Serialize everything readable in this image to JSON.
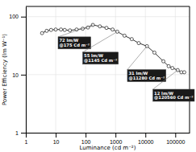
{
  "chart_data": {
    "type": "line",
    "x": [
      3.5,
      5,
      7,
      10,
      15,
      20,
      30,
      50,
      80,
      120,
      175,
      300,
      500,
      800,
      1145,
      2000,
      3500,
      6000,
      11280,
      20000,
      40000,
      60000,
      80000,
      120560,
      160000,
      200000
    ],
    "values": [
      52,
      57,
      59,
      60,
      60,
      59,
      58,
      60,
      62,
      65,
      72,
      68,
      64,
      60,
      55,
      47,
      41,
      35,
      31,
      24,
      17,
      14,
      13,
      12,
      11,
      11
    ],
    "xlabel": "Luminance (cd m⁻²)",
    "ylabel": "Power Efficiency (lm W⁻¹)",
    "xlim": [
      1,
      300000
    ],
    "ylim": [
      1,
      150
    ],
    "xticks": [
      1,
      10,
      100,
      1000,
      10000,
      100000
    ],
    "yticks": [
      1,
      10,
      100
    ],
    "log": true,
    "grid": true,
    "color": "#333333",
    "marker": "circle",
    "annotations": [
      {
        "label": "72 lm/W\n@175 Cd m⁻²",
        "x": 175,
        "y": 72,
        "text_x": 12,
        "text_y": 44
      },
      {
        "label": "55 lm/W\n@1145 Cd m⁻²",
        "x": 1145,
        "y": 55,
        "text_x": 80,
        "text_y": 24
      },
      {
        "label": "31 lm/W\n@11280 Cd m⁻²",
        "x": 11280,
        "y": 31,
        "text_x": 2500,
        "text_y": 12
      },
      {
        "label": "12 lm/W\n@120560 Cd m⁻²",
        "x": 120560,
        "y": 12,
        "text_x": 18000,
        "text_y": 5.5
      }
    ]
  }
}
